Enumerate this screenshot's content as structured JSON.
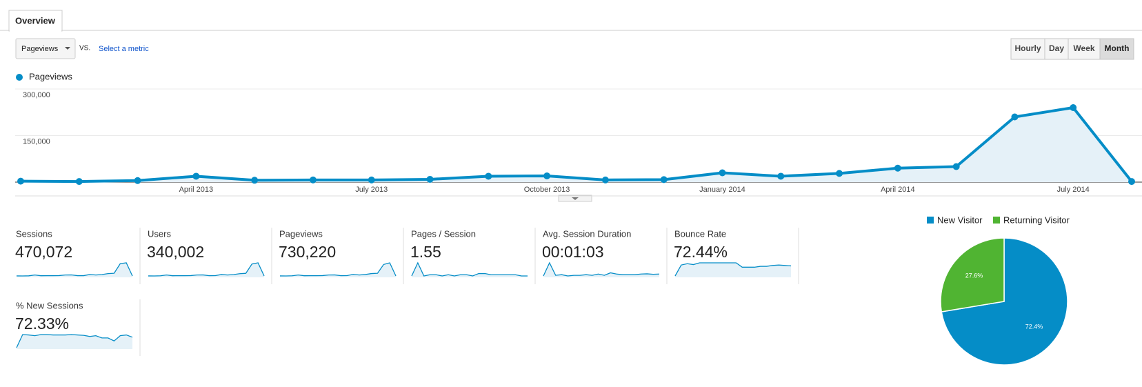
{
  "tabs": [
    "Overview"
  ],
  "metric_selector": "Pageviews",
  "vs_label": "VS.",
  "select_metric": "Select a metric",
  "granularity": [
    "Hourly",
    "Day",
    "Week",
    "Month"
  ],
  "active_granularity": "Month",
  "chart_data": [
    {
      "type": "line",
      "categories": [
        null,
        null,
        null,
        "April 2013",
        null,
        null,
        "July 2013",
        null,
        null,
        "October 2013",
        null,
        null,
        "January 2014",
        null,
        null,
        "April 2014",
        null,
        null,
        "July 2014",
        null
      ],
      "series": [
        {
          "name": "Pageviews",
          "color": "#058dc7",
          "values": [
            3000,
            2000,
            5000,
            19000,
            6000,
            7000,
            7000,
            9000,
            19000,
            20000,
            7000,
            8000,
            30000,
            19000,
            28000,
            45000,
            50000,
            210000,
            240000,
            2000
          ]
        }
      ],
      "ylim": [
        0,
        300000
      ],
      "yticks": [
        {
          "value": 150000,
          "label": "150,000"
        },
        {
          "value": 300000,
          "label": "300,000"
        }
      ],
      "grid": true
    },
    {
      "type": "pie",
      "categories": [
        "New Visitor",
        "Returning Visitor"
      ],
      "values": [
        72.4,
        27.6
      ],
      "value_labels": [
        "72.4%",
        "27.6%"
      ],
      "colors": [
        "#058dc7",
        "#50b432"
      ]
    }
  ],
  "scorecards": [
    {
      "label": "Sessions",
      "value": "470,072",
      "sparkline": [
        2000,
        1500,
        3000,
        12000,
        4000,
        5000,
        5000,
        6000,
        12000,
        13000,
        5000,
        5000,
        18000,
        12000,
        17000,
        28000,
        32000,
        140000,
        150000,
        1500
      ]
    },
    {
      "label": "Users",
      "value": "340,002",
      "sparkline": [
        1500,
        1200,
        2500,
        9000,
        3000,
        3500,
        3500,
        4500,
        9000,
        9500,
        3500,
        4000,
        13000,
        9000,
        12500,
        20000,
        23000,
        100000,
        110000,
        1200
      ]
    },
    {
      "label": "Pageviews",
      "value": "730,220",
      "sparkline": [
        3000,
        2000,
        5000,
        19000,
        6000,
        7000,
        7000,
        9000,
        19000,
        20000,
        7000,
        8000,
        30000,
        19000,
        28000,
        45000,
        50000,
        210000,
        240000,
        2000
      ]
    },
    {
      "label": "Pages / Session",
      "value": "1.55",
      "sparkline": [
        1.5,
        2.6,
        1.5,
        1.6,
        1.6,
        1.5,
        1.6,
        1.5,
        1.6,
        1.6,
        1.5,
        1.7,
        1.7,
        1.6,
        1.6,
        1.6,
        1.6,
        1.6,
        1.5,
        1.5
      ]
    },
    {
      "label": "Avg. Session Duration",
      "value": "00:01:03",
      "sparkline": [
        45,
        150,
        50,
        55,
        45,
        50,
        50,
        55,
        50,
        60,
        50,
        70,
        60,
        55,
        55,
        55,
        60,
        62,
        58,
        60
      ]
    },
    {
      "label": "Bounce Rate",
      "value": "72.44%",
      "sparkline": [
        50,
        75,
        78,
        76,
        80,
        80,
        80,
        80,
        80,
        80,
        80,
        70,
        70,
        70,
        72,
        72,
        74,
        75,
        74,
        73
      ]
    },
    {
      "label": "% New Sessions",
      "value": "72.33%",
      "sparkline": [
        40,
        75,
        74,
        72,
        75,
        75,
        74,
        74,
        74,
        75,
        74,
        73,
        70,
        72,
        66,
        66,
        58,
        72,
        74,
        68
      ]
    }
  ]
}
